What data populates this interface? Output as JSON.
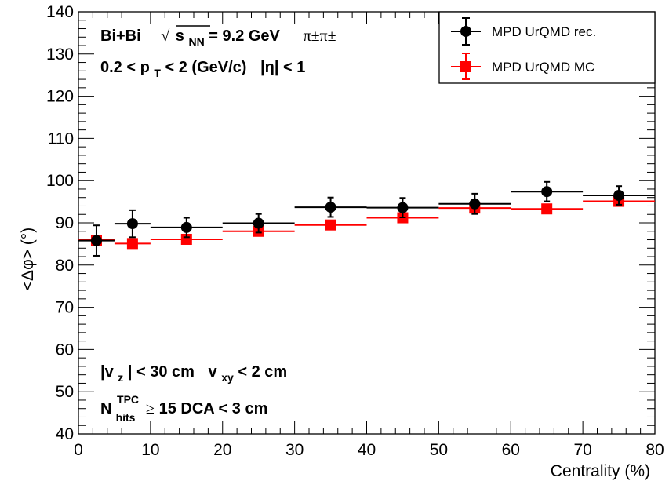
{
  "chart_data": {
    "type": "scatter",
    "xlabel": "Centrality (%)",
    "ylabel": "<Δφ> (°)",
    "xlim": [
      0,
      80
    ],
    "ylim": [
      40,
      140
    ],
    "x_ticks": [
      "0",
      "10",
      "20",
      "30",
      "40",
      "50",
      "60",
      "70",
      "80"
    ],
    "y_ticks": [
      "40",
      "50",
      "60",
      "70",
      "80",
      "90",
      "100",
      "110",
      "120",
      "130",
      "140"
    ],
    "grid": false,
    "legend_position": "top-right",
    "series": [
      {
        "name": "MPD UrQMD rec.",
        "color": "#000000",
        "marker": "circle",
        "points": [
          {
            "x": 2.5,
            "xerr": 2.5,
            "y": 85.8,
            "yerr": 3.6
          },
          {
            "x": 7.5,
            "xerr": 2.5,
            "y": 89.8,
            "yerr": 3.2
          },
          {
            "x": 15,
            "xerr": 5,
            "y": 88.9,
            "yerr": 2.3
          },
          {
            "x": 25,
            "xerr": 5,
            "y": 89.9,
            "yerr": 2.2
          },
          {
            "x": 35,
            "xerr": 5,
            "y": 93.7,
            "yerr": 2.3
          },
          {
            "x": 45,
            "xerr": 5,
            "y": 93.6,
            "yerr": 2.3
          },
          {
            "x": 55,
            "xerr": 5,
            "y": 94.5,
            "yerr": 2.4
          },
          {
            "x": 65,
            "xerr": 5,
            "y": 97.4,
            "yerr": 2.3
          },
          {
            "x": 75,
            "xerr": 5,
            "y": 96.5,
            "yerr": 2.2
          }
        ]
      },
      {
        "name": "MPD UrQMD MC",
        "color": "#ff0000",
        "marker": "square",
        "points": [
          {
            "x": 2.5,
            "xerr": 2.5,
            "y": 85.9,
            "yerr": 0.5
          },
          {
            "x": 7.5,
            "xerr": 2.5,
            "y": 85.1,
            "yerr": 0.5
          },
          {
            "x": 15,
            "xerr": 5,
            "y": 86.1,
            "yerr": 0.5
          },
          {
            "x": 25,
            "xerr": 5,
            "y": 88.0,
            "yerr": 0.5
          },
          {
            "x": 35,
            "xerr": 5,
            "y": 89.5,
            "yerr": 0.5
          },
          {
            "x": 45,
            "xerr": 5,
            "y": 91.2,
            "yerr": 0.5
          },
          {
            "x": 55,
            "xerr": 5,
            "y": 93.5,
            "yerr": 0.5
          },
          {
            "x": 65,
            "xerr": 5,
            "y": 93.3,
            "yerr": 0.5
          },
          {
            "x": 75,
            "xerr": 5,
            "y": 95.1,
            "yerr": 0.5
          }
        ]
      }
    ],
    "annotations": {
      "system": "Bi+Bi",
      "energy_sqrt": "√",
      "energy_s": "s",
      "energy_sub": "NN",
      "energy_val": " = 9.2 GeV",
      "particles": "π±π±",
      "pt_cut_a": "0.2 < p",
      "pt_sub": "T",
      "pt_cut_b": " < 2 (GeV/c)",
      "eta_cut": "|η| < 1",
      "vz_a": "|v",
      "vz_sub": "z",
      "vz_b": "| < 30 cm",
      "vxy_a": "v",
      "vxy_sub": "xy",
      "vxy_b": " < 2 cm",
      "nhits_n": "N",
      "nhits_sup": "TPC",
      "nhits_sub": "hits",
      "nhits_geq": "≥",
      "nhits_val": " 15  DCA < 3 cm"
    }
  }
}
